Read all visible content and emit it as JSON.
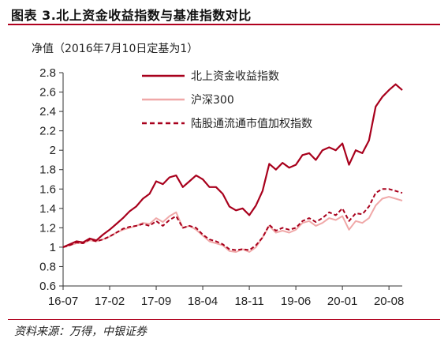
{
  "figure_title": "图表 3.北上资金收益指数与基准指数对比",
  "source": "资料来源：万得，中银证券",
  "chart_data": {
    "type": "line",
    "title": "",
    "xlabel": "",
    "ylabel": "净值（2016年7月10日定基为1）",
    "ylim": [
      0.6,
      2.8
    ],
    "y_ticks": [
      "0.6",
      "0.8",
      "1",
      "1.2",
      "1.4",
      "1.6",
      "1.8",
      "2",
      "2.2",
      "2.4",
      "2.6",
      "2.8"
    ],
    "x_tick_labels": [
      "16-07",
      "17-02",
      "17-09",
      "18-04",
      "18-11",
      "19-06",
      "20-01",
      "20-08"
    ],
    "x_tick_months": [
      0,
      7,
      14,
      21,
      28,
      35,
      42,
      49
    ],
    "x_range_months": [
      0,
      51
    ],
    "grid": false,
    "legend_position": "top-right",
    "series": [
      {
        "name": "北上资金收益指数",
        "color": "#a8001c",
        "style": "solid",
        "x": [
          0,
          1,
          2,
          3,
          4,
          5,
          6,
          7,
          8,
          9,
          10,
          11,
          12,
          13,
          14,
          15,
          16,
          17,
          18,
          19,
          20,
          21,
          22,
          23,
          24,
          25,
          26,
          27,
          28,
          29,
          30,
          31,
          32,
          33,
          34,
          35,
          36,
          37,
          38,
          39,
          40,
          41,
          42,
          43,
          44,
          45,
          46,
          47,
          48,
          49,
          50,
          51
        ],
        "values": [
          1.0,
          1.03,
          1.06,
          1.05,
          1.09,
          1.07,
          1.13,
          1.18,
          1.24,
          1.3,
          1.37,
          1.42,
          1.5,
          1.55,
          1.68,
          1.65,
          1.72,
          1.74,
          1.62,
          1.68,
          1.74,
          1.7,
          1.62,
          1.62,
          1.55,
          1.42,
          1.38,
          1.4,
          1.33,
          1.43,
          1.58,
          1.86,
          1.8,
          1.87,
          1.82,
          1.85,
          1.95,
          1.97,
          1.9,
          2.0,
          2.03,
          2.0,
          2.07,
          1.85,
          2.0,
          1.97,
          2.1,
          2.45,
          2.55,
          2.62,
          2.68,
          2.62
        ]
      },
      {
        "name": "沪深300",
        "color": "#f0a8a8",
        "style": "solid",
        "x": [
          0,
          1,
          2,
          3,
          4,
          5,
          6,
          7,
          8,
          9,
          10,
          11,
          12,
          13,
          14,
          15,
          16,
          17,
          18,
          19,
          20,
          21,
          22,
          23,
          24,
          25,
          26,
          27,
          28,
          29,
          30,
          31,
          32,
          33,
          34,
          35,
          36,
          37,
          38,
          39,
          40,
          41,
          42,
          43,
          44,
          45,
          46,
          47,
          48,
          49,
          50,
          51
        ],
        "values": [
          1.0,
          1.02,
          1.04,
          1.04,
          1.07,
          1.06,
          1.08,
          1.11,
          1.15,
          1.18,
          1.2,
          1.22,
          1.25,
          1.24,
          1.3,
          1.26,
          1.32,
          1.36,
          1.2,
          1.22,
          1.18,
          1.12,
          1.06,
          1.04,
          1.02,
          0.96,
          0.95,
          0.98,
          0.95,
          1.0,
          1.1,
          1.22,
          1.15,
          1.17,
          1.15,
          1.18,
          1.25,
          1.27,
          1.22,
          1.25,
          1.3,
          1.28,
          1.32,
          1.18,
          1.27,
          1.25,
          1.3,
          1.43,
          1.5,
          1.52,
          1.5,
          1.48
        ]
      },
      {
        "name": "陆股通流通市值加权指数",
        "color": "#a8001c",
        "style": "dashed",
        "x": [
          0,
          1,
          2,
          3,
          4,
          5,
          6,
          7,
          8,
          9,
          10,
          11,
          12,
          13,
          14,
          15,
          16,
          17,
          18,
          19,
          20,
          21,
          22,
          23,
          24,
          25,
          26,
          27,
          28,
          29,
          30,
          31,
          32,
          33,
          34,
          35,
          36,
          37,
          38,
          39,
          40,
          41,
          42,
          43,
          44,
          45,
          46,
          47,
          48,
          49,
          50,
          51
        ],
        "values": [
          1.0,
          1.02,
          1.05,
          1.04,
          1.08,
          1.06,
          1.08,
          1.11,
          1.15,
          1.19,
          1.21,
          1.22,
          1.24,
          1.22,
          1.27,
          1.22,
          1.28,
          1.32,
          1.2,
          1.22,
          1.2,
          1.13,
          1.08,
          1.06,
          1.03,
          0.98,
          0.97,
          0.98,
          0.97,
          1.02,
          1.1,
          1.23,
          1.17,
          1.2,
          1.18,
          1.2,
          1.27,
          1.3,
          1.26,
          1.3,
          1.36,
          1.33,
          1.4,
          1.27,
          1.35,
          1.34,
          1.42,
          1.56,
          1.6,
          1.6,
          1.58,
          1.56
        ]
      }
    ]
  }
}
